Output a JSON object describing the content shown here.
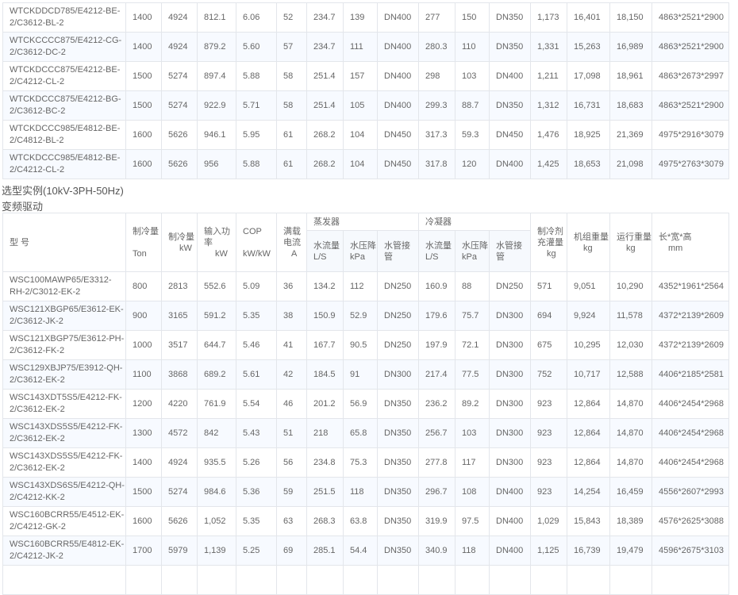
{
  "top_table": {
    "rows": [
      [
        "WTCKDDCD785/E4212-BE-2/C3612-BL-2",
        "1400",
        "4924",
        "812.1",
        "6.06",
        "52",
        "234.7",
        "139",
        "DN400",
        "277",
        "150",
        "DN350",
        "1,173",
        "16,401",
        "18,150",
        "4863*2521*2900"
      ],
      [
        "WTCKCCCC875/E4212-CG-2/C3612-DC-2",
        "1400",
        "4924",
        "879.2",
        "5.60",
        "57",
        "234.7",
        "111",
        "DN400",
        "280.3",
        "110",
        "DN350",
        "1,331",
        "15,263",
        "16,989",
        "4863*2521*2900"
      ],
      [
        "WTCKDCCC875/E4212-BE-2/C4212-CL-2",
        "1500",
        "5274",
        "897.4",
        "5.88",
        "58",
        "251.4",
        "157",
        "DN400",
        "298",
        "103",
        "DN400",
        "1,211",
        "17,098",
        "18,961",
        "4863*2673*2997"
      ],
      [
        "WTCKDCCC875/E4212-BG-2/C3612-BC-2",
        "1500",
        "5274",
        "922.9",
        "5.71",
        "58",
        "251.4",
        "105",
        "DN400",
        "299.3",
        "88.7",
        "DN350",
        "1,312",
        "16,731",
        "18,683",
        "4863*2521*2900"
      ],
      [
        "WTCKDCCC985/E4812-BE-2/C4812-BL-2",
        "1600",
        "5626",
        "946.1",
        "5.95",
        "61",
        "268.2",
        "104",
        "DN450",
        "317.3",
        "59.3",
        "DN450",
        "1,476",
        "18,925",
        "21,369",
        "4975*2916*3079"
      ],
      [
        "WTCKDCCC985/E4812-BE-2/C4212-CL-2",
        "1600",
        "5626",
        "956",
        "5.88",
        "61",
        "268.2",
        "104",
        "DN450",
        "317.8",
        "120",
        "DN400",
        "1,425",
        "18,653",
        "21,098",
        "4975*2763*3079"
      ]
    ]
  },
  "section_title": "选型实例(10kV-3PH-50Hz)",
  "subsection_title": "变频驱动",
  "bottom_table": {
    "headers": {
      "model": "型 号",
      "ton": {
        "label": "制冷量",
        "unit": "Ton"
      },
      "kw": {
        "label": "制冷量",
        "unit": "kW"
      },
      "input": {
        "label": "输入功率",
        "unit": "kW"
      },
      "cop": {
        "label": "COP",
        "unit": "kW/kW"
      },
      "current": {
        "label": "满载电流",
        "unit": "A"
      },
      "evaporator": "蒸发器",
      "condenser": "冷凝器",
      "flow": {
        "label": "水流量L/S"
      },
      "pressure": {
        "label": "水压降",
        "unit": "kPa"
      },
      "pipe": {
        "label": "水管接管"
      },
      "refrigerant": {
        "label": "制冷剂充灌量",
        "unit": "kg"
      },
      "unit_weight": {
        "label": "机组重量",
        "unit": "kg"
      },
      "run_weight": {
        "label": "运行重量",
        "unit": "kg"
      },
      "dimensions": {
        "label": "长*宽*高",
        "unit": "mm"
      }
    },
    "rows": [
      [
        "WSC100MAWP65/E3312-RH-2/C3012-EK-2",
        "800",
        "2813",
        "552.6",
        "5.09",
        "36",
        "134.2",
        "112",
        "DN250",
        "160.9",
        "88",
        "DN250",
        "571",
        "9,051",
        "10,290",
        "4352*1961*2564"
      ],
      [
        "WSC121XBGP65/E3612-EK-2/C3612-JK-2",
        "900",
        "3165",
        "591.2",
        "5.35",
        "38",
        "150.9",
        "52.9",
        "DN250",
        "179.6",
        "75.7",
        "DN300",
        "694",
        "9,924",
        "11,578",
        "4372*2139*2609"
      ],
      [
        "WSC121XBGP75/E3612-PH-2/C3612-FK-2",
        "1000",
        "3517",
        "644.7",
        "5.46",
        "41",
        "167.7",
        "90.5",
        "DN250",
        "197.9",
        "72.1",
        "DN300",
        "675",
        "10,295",
        "12,030",
        "4372*2139*2609"
      ],
      [
        "WSC129XBJP75/E3912-QH-2/C3612-EK-2",
        "1100",
        "3868",
        "689.2",
        "5.61",
        "42",
        "184.5",
        "91",
        "DN300",
        "217.4",
        "77.5",
        "DN300",
        "752",
        "10,717",
        "12,588",
        "4406*2185*2581"
      ],
      [
        "WSC143XDT5S5/E4212-FK-2/C3612-EK-2",
        "1200",
        "4220",
        "761.9",
        "5.54",
        "46",
        "201.2",
        "56.9",
        "DN350",
        "236.2",
        "89.2",
        "DN300",
        "923",
        "12,864",
        "14,870",
        "4406*2454*2968"
      ],
      [
        "WSC143XDS5S5/E4212-FK-2/C3612-EK-2",
        "1300",
        "4572",
        "842",
        "5.43",
        "51",
        "218",
        "65.8",
        "DN350",
        "256.7",
        "103",
        "DN300",
        "923",
        "12,864",
        "14,870",
        "4406*2454*2968"
      ],
      [
        "WSC143XDS5S5/E4212-FK-2/C3612-EK-2",
        "1400",
        "4924",
        "935.5",
        "5.26",
        "56",
        "234.8",
        "75.3",
        "DN350",
        "277.8",
        "117",
        "DN300",
        "923",
        "12,864",
        "14,870",
        "4406*2454*2968"
      ],
      [
        "WSC143XDS6S5/E4212-QH-2/C4212-KK-2",
        "1500",
        "5274",
        "984.6",
        "5.36",
        "59",
        "251.5",
        "118",
        "DN350",
        "296.7",
        "108",
        "DN400",
        "923",
        "14,254",
        "16,459",
        "4556*2607*2993"
      ],
      [
        "WSC160BCRR55/E4512-EK-2/C4212-GK-2",
        "1600",
        "5626",
        "1,052",
        "5.35",
        "63",
        "268.3",
        "63.8",
        "DN350",
        "319.9",
        "97.5",
        "DN400",
        "1,029",
        "15,843",
        "18,389",
        "4576*2625*3088"
      ],
      [
        "WSC160BCRR55/E4812-EK-2/C4212-JK-2",
        "1700",
        "5979",
        "1,139",
        "5.25",
        "69",
        "285.1",
        "54.4",
        "DN350",
        "340.9",
        "118",
        "DN400",
        "1,125",
        "16,739",
        "19,479",
        "4596*2675*3103"
      ]
    ]
  }
}
